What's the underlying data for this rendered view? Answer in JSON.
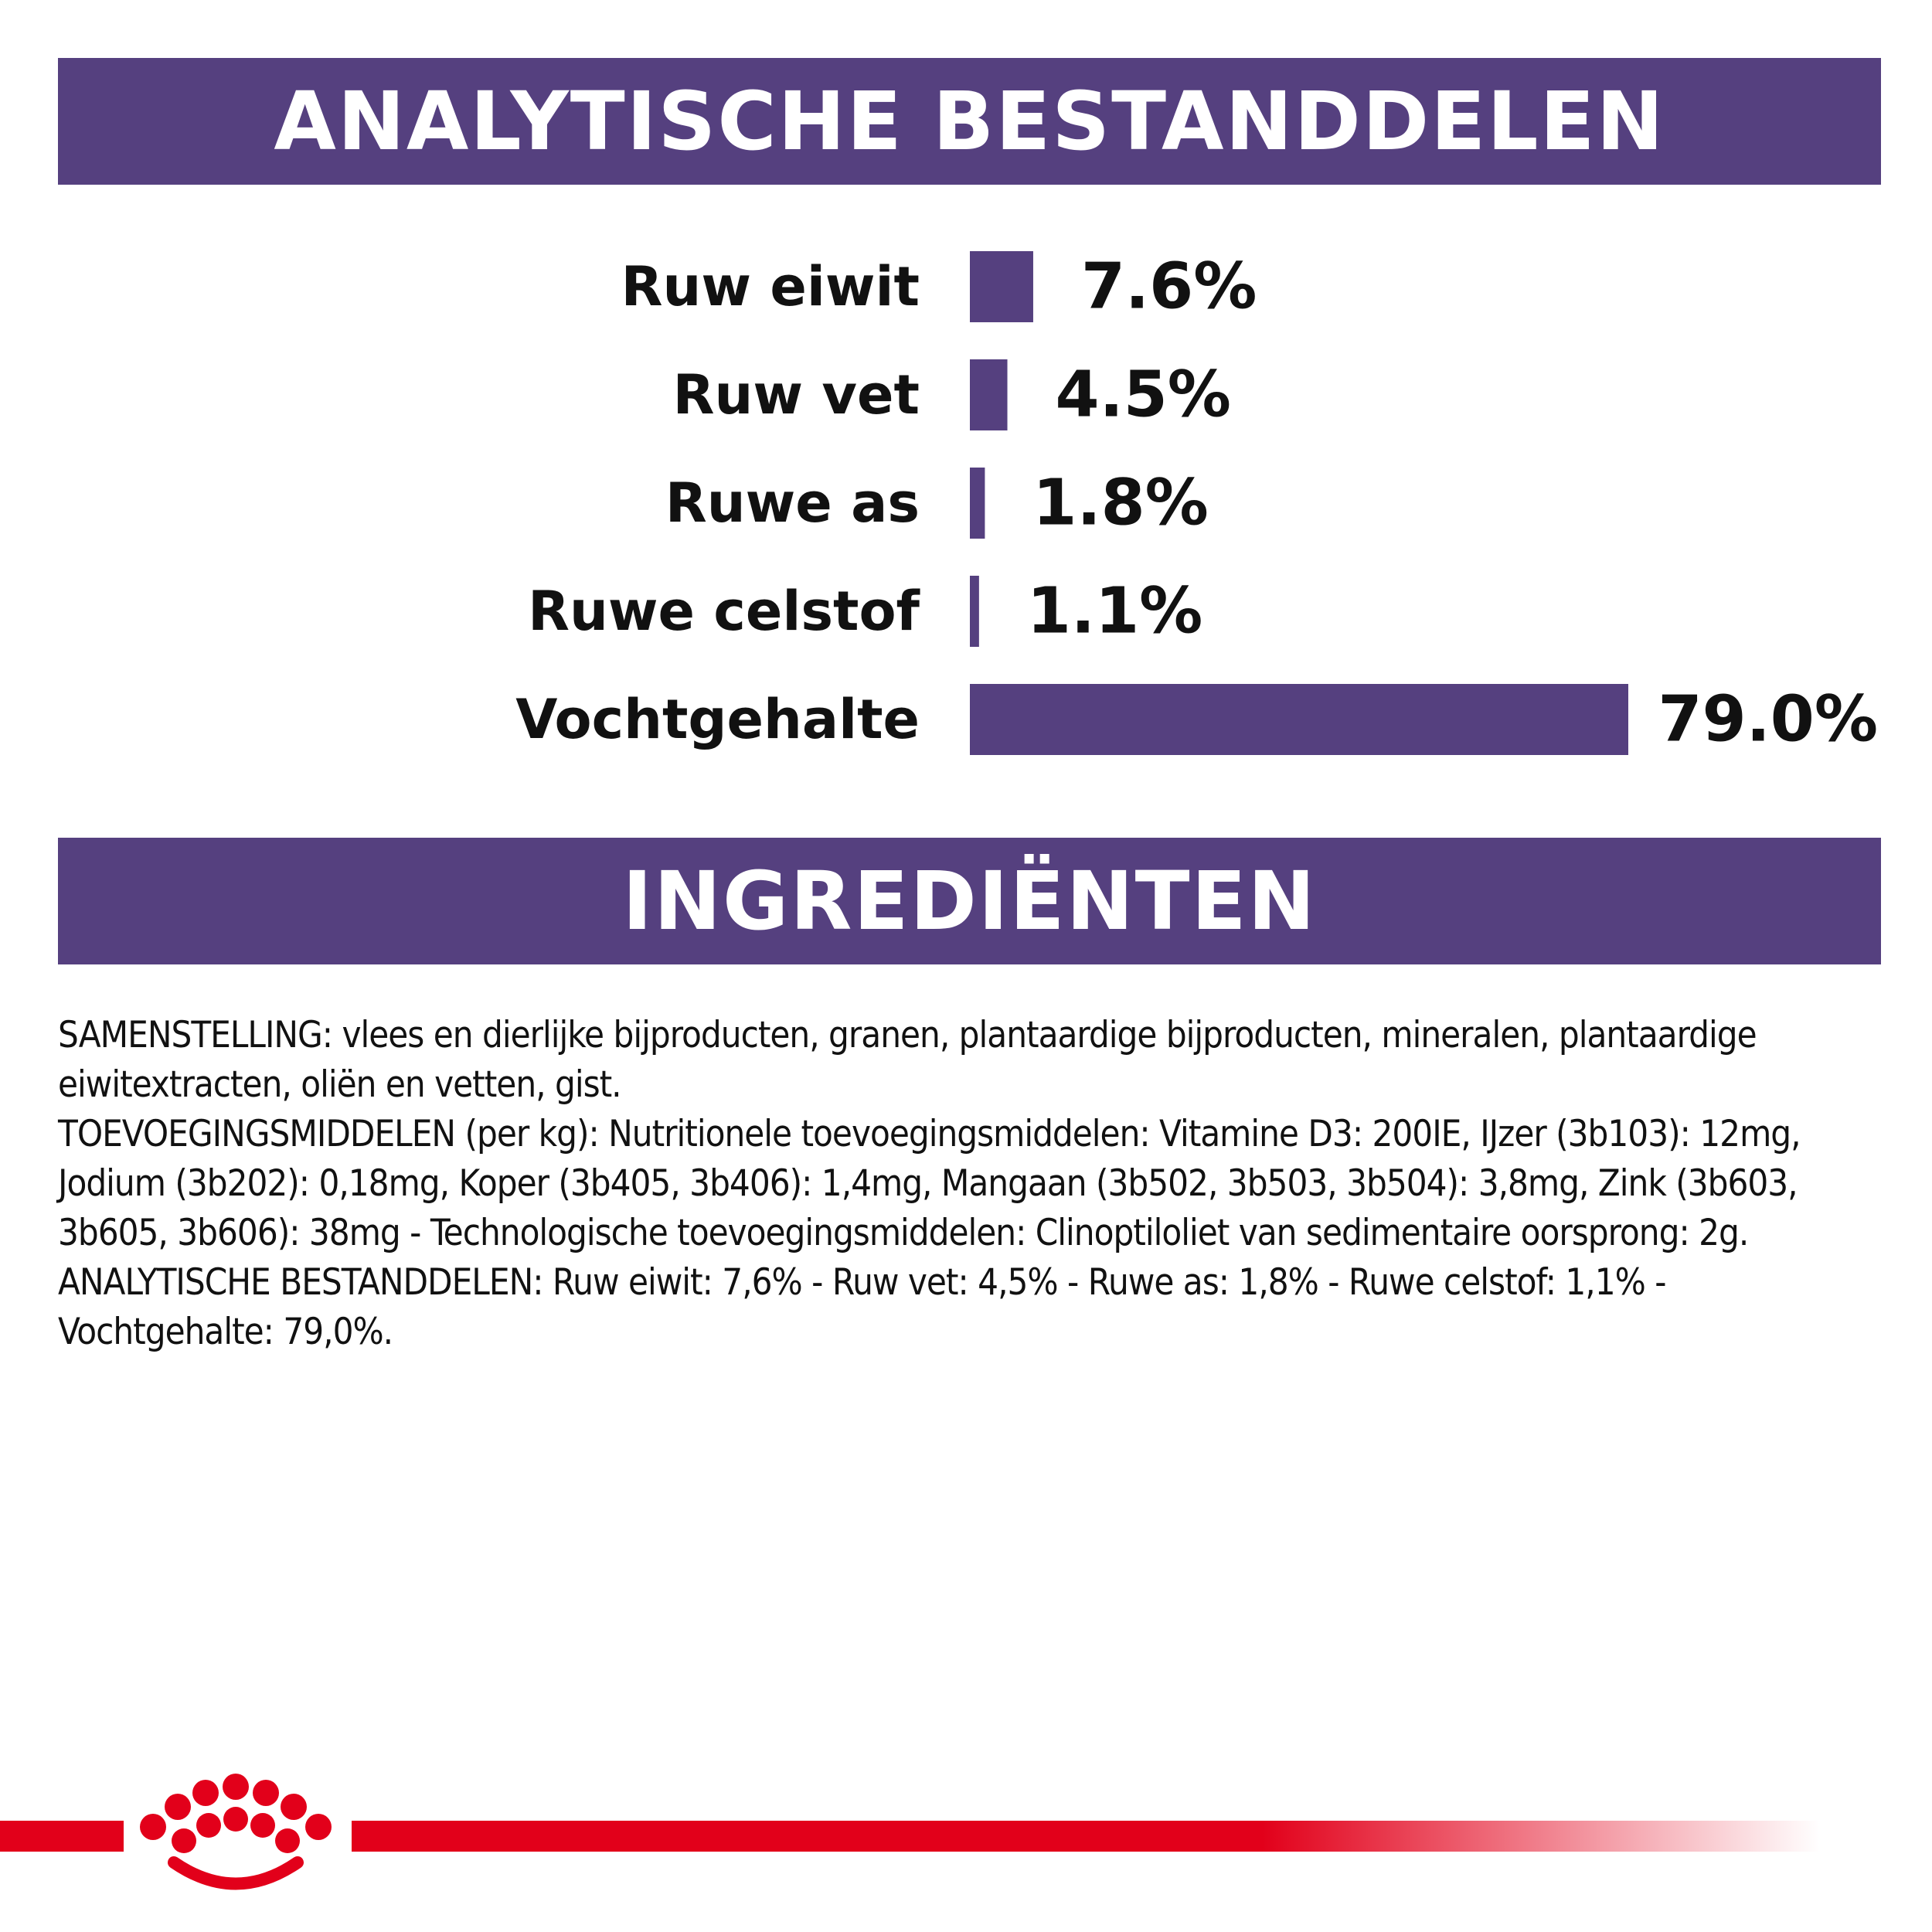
{
  "colors": {
    "accent": "#55407f",
    "brand_red": "#e2001a",
    "text": "#111111"
  },
  "section1": {
    "title": "ANALYTISCHE BESTANDDELEN"
  },
  "section2": {
    "title": "INGREDIËNTEN"
  },
  "chart_data": {
    "type": "bar",
    "orientation": "horizontal",
    "categories": [
      "Ruw eiwit",
      "Ruw vet",
      "Ruwe as",
      "Ruwe celstof",
      "Vochtgehalte"
    ],
    "values": [
      7.6,
      4.5,
      1.8,
      1.1,
      79.0
    ],
    "value_labels": [
      "7.6%",
      "4.5%",
      "1.8%",
      "1.1%",
      "79.0%"
    ],
    "unit": "%",
    "title": "",
    "xlabel": "",
    "ylabel": "",
    "grid": false,
    "legend": "none"
  },
  "ingredients": {
    "paragraphs": [
      "SAMENSTELLING: vlees en dierlijke bijproducten, granen, plantaardige bijproducten, mineralen, plantaardige eiwitextracten, oliën en vetten, gist.",
      "TOEVOEGINGSMIDDELEN (per kg): Nutritionele toevoegingsmiddelen: Vitamine D3: 200IE, IJzer (3b103): 12mg, Jodium (3b202): 0,18mg, Koper (3b405, 3b406): 1,4mg, Mangaan (3b502, 3b503, 3b504): 3,8mg, Zink (3b603, 3b605, 3b606): 38mg - Technologische toevoegingsmiddelen: Clinoptiloliet van sedimentaire oorsprong: 2g.",
      "ANALYTISCHE BESTANDDELEN: Ruw eiwit: 7,6% - Ruw vet: 4,5% - Ruwe as: 1,8% - Ruwe celstof: 1,1% - Vochtgehalte: 79,0%."
    ]
  },
  "footer": {
    "logo_icon": "crown-icon"
  }
}
